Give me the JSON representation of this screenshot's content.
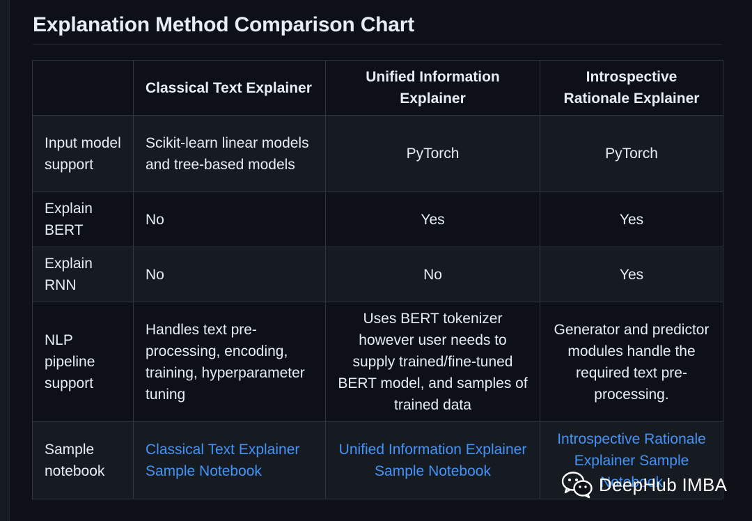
{
  "title": "Explanation Method Comparison Chart",
  "table": {
    "headers": [
      "",
      "Classical Text Explainer",
      "Unified Information Explainer",
      "Introspective Rationale Explainer"
    ],
    "rows": [
      {
        "label": "Input model support",
        "cells": [
          "Scikit-learn linear models and tree-based models",
          "PyTorch",
          "PyTorch"
        ]
      },
      {
        "label": "Explain BERT",
        "cells": [
          "No",
          "Yes",
          "Yes"
        ]
      },
      {
        "label": "Explain RNN",
        "cells": [
          "No",
          "No",
          "Yes"
        ]
      },
      {
        "label": "NLP pipeline support",
        "cells": [
          "Handles text pre-processing, encoding, training, hyperparameter tuning",
          "Uses BERT tokenizer however user needs to supply trained/fine-tuned BERT model, and samples of trained data",
          "Generator and predictor modules handle the required text pre-processing."
        ]
      },
      {
        "label": "Sample notebook",
        "links": [
          "Classical Text Explainer Sample Notebook",
          "Unified Information Explainer Sample Notebook",
          "Introspective Rationale Explainer Sample Notebook"
        ]
      }
    ]
  },
  "watermark": {
    "text": "DeepHub IMBA",
    "icon": "wechat-icon"
  },
  "colors": {
    "background": "#0d1117",
    "alt_row": "#161b22",
    "border": "#30363d",
    "text": "#e6edf3",
    "link": "#4493f8"
  }
}
